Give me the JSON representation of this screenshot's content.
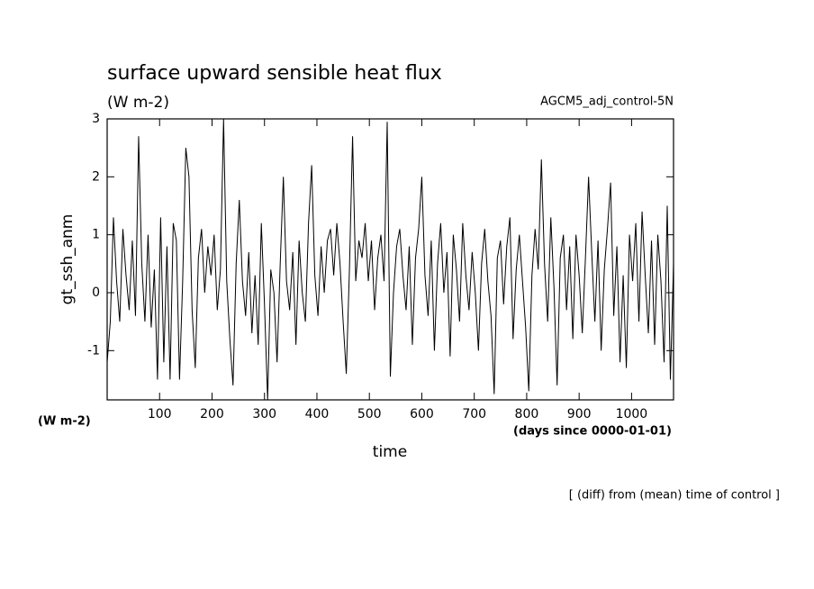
{
  "chart_data": {
    "type": "line",
    "title": "surface upward sensible heat flux",
    "subtitle": "(W m-2)",
    "annotation": "AGCM5_adj_control-5N",
    "y_label": "gt_ssh_anm",
    "y_units": "(W m-2)",
    "x_units": "(days since 0000-01-01)",
    "x_label": "time",
    "footer": "[ (diff) from (mean) time of control ]",
    "xlim": [
      0,
      1080
    ],
    "ylim": [
      -1.85,
      3
    ],
    "xticks": [
      100,
      200,
      300,
      400,
      500,
      600,
      700,
      800,
      900,
      1000
    ],
    "yticks": [
      -1,
      0,
      1,
      2,
      3
    ],
    "x": [
      0,
      6,
      12,
      18,
      24,
      30,
      36,
      42,
      48,
      54,
      60,
      66,
      72,
      78,
      84,
      90,
      96,
      102,
      108,
      114,
      120,
      126,
      132,
      138,
      144,
      150,
      156,
      162,
      168,
      174,
      180,
      186,
      192,
      198,
      204,
      210,
      216,
      222,
      228,
      234,
      240,
      246,
      252,
      258,
      264,
      270,
      276,
      282,
      288,
      294,
      300,
      306,
      312,
      318,
      324,
      330,
      336,
      342,
      348,
      354,
      360,
      366,
      372,
      378,
      384,
      390,
      396,
      402,
      408,
      414,
      420,
      426,
      432,
      438,
      444,
      450,
      456,
      462,
      468,
      474,
      480,
      486,
      492,
      498,
      504,
      510,
      516,
      522,
      528,
      534,
      540,
      546,
      552,
      558,
      564,
      570,
      576,
      582,
      588,
      594,
      600,
      606,
      612,
      618,
      624,
      630,
      636,
      642,
      648,
      654,
      660,
      666,
      672,
      678,
      684,
      690,
      696,
      702,
      708,
      714,
      720,
      726,
      732,
      738,
      744,
      750,
      756,
      762,
      768,
      774,
      780,
      786,
      792,
      798,
      804,
      810,
      816,
      822,
      828,
      834,
      840,
      846,
      852,
      858,
      864,
      870,
      876,
      882,
      888,
      894,
      900,
      906,
      912,
      918,
      924,
      930,
      936,
      942,
      948,
      954,
      960,
      966,
      972,
      978,
      984,
      990,
      996,
      1002,
      1008,
      1014,
      1020,
      1026,
      1032,
      1038,
      1044,
      1050,
      1056,
      1062,
      1068,
      1074,
      1080
    ],
    "series": [
      {
        "color": "#000000",
        "values": [
          -1.2,
          -0.5,
          1.3,
          0.2,
          -0.5,
          1.1,
          0.3,
          -0.3,
          0.9,
          -0.4,
          2.7,
          0.5,
          -0.5,
          1.0,
          -0.6,
          0.4,
          -1.5,
          1.3,
          -1.2,
          0.8,
          -1.5,
          1.2,
          0.9,
          -1.5,
          0.2,
          2.5,
          2.0,
          -0.3,
          -1.3,
          0.6,
          1.1,
          0.0,
          0.8,
          0.3,
          1.0,
          -0.3,
          0.4,
          3.0,
          0.2,
          -0.8,
          -1.6,
          0.5,
          1.6,
          0.2,
          -0.4,
          0.7,
          -0.7,
          0.3,
          -0.9,
          1.2,
          -0.2,
          -1.85,
          0.4,
          0.0,
          -1.2,
          0.5,
          2.0,
          0.2,
          -0.3,
          0.7,
          -0.9,
          0.9,
          0.0,
          -0.5,
          1.2,
          2.2,
          0.3,
          -0.4,
          0.8,
          0.0,
          0.9,
          1.1,
          0.3,
          1.2,
          0.5,
          -0.5,
          -1.4,
          0.4,
          2.7,
          0.2,
          0.9,
          0.6,
          1.2,
          0.2,
          0.9,
          -0.3,
          0.6,
          1.0,
          0.2,
          2.95,
          -1.45,
          0.0,
          0.8,
          1.1,
          0.3,
          -0.3,
          0.8,
          -0.9,
          0.6,
          1.1,
          2.0,
          0.3,
          -0.4,
          0.9,
          -1.0,
          0.5,
          1.2,
          0.0,
          0.7,
          -1.1,
          1.0,
          0.4,
          -0.5,
          1.2,
          0.3,
          -0.3,
          0.7,
          0.0,
          -1.0,
          0.5,
          1.1,
          0.2,
          -0.4,
          -1.75,
          0.6,
          0.9,
          -0.2,
          0.8,
          1.3,
          -0.8,
          0.4,
          1.0,
          0.2,
          -0.6,
          -1.7,
          0.3,
          1.1,
          0.4,
          2.3,
          0.5,
          -0.5,
          1.3,
          0.1,
          -1.6,
          0.6,
          1.0,
          -0.3,
          0.8,
          -0.8,
          1.0,
          0.3,
          -0.7,
          0.6,
          2.0,
          0.7,
          -0.5,
          0.9,
          -1.0,
          0.4,
          1.1,
          1.9,
          -0.4,
          0.8,
          -1.2,
          0.3,
          -1.3,
          1.0,
          0.2,
          1.2,
          -0.5,
          1.4,
          0.3,
          -0.7,
          0.9,
          -0.9,
          1.0,
          0.2,
          -1.2,
          1.5,
          -1.5,
          0.5
        ]
      }
    ]
  }
}
